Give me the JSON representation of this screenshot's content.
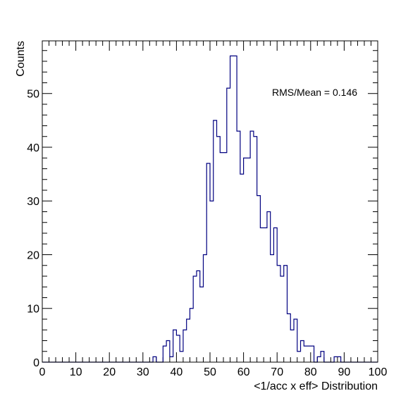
{
  "chart_data": {
    "type": "histogram",
    "title": "",
    "xlabel": "<1/acc x eff> Distribution",
    "ylabel": "Counts",
    "xlim": [
      0,
      100
    ],
    "ylim": [
      0,
      59.8
    ],
    "bin_width": 1,
    "x_major_ticks": [
      0,
      10,
      20,
      30,
      40,
      50,
      60,
      70,
      80,
      90,
      100
    ],
    "y_major_ticks": [
      0,
      10,
      20,
      30,
      40,
      50
    ],
    "tick_labels_x": [
      "0",
      "10",
      "20",
      "30",
      "40",
      "50",
      "60",
      "70",
      "80",
      "90",
      "100"
    ],
    "tick_labels_y": [
      "0",
      "10",
      "20",
      "30",
      "40",
      "50"
    ],
    "annotation": "RMS/Mean = 0.146",
    "line_color": "#000080",
    "bin_edges_start": 0,
    "counts": [
      0,
      0,
      0,
      0,
      0,
      0,
      0,
      0,
      0,
      0,
      0,
      0,
      0,
      0,
      0,
      0,
      0,
      0,
      0,
      0,
      0,
      0,
      0,
      0,
      0,
      0,
      0,
      0,
      0,
      0,
      0,
      0,
      0,
      1,
      0,
      0,
      3,
      4,
      1,
      6,
      5,
      2,
      6,
      8,
      10,
      16,
      17,
      14,
      20,
      37,
      30,
      45,
      42,
      39,
      39,
      51,
      57,
      57,
      43,
      35,
      38,
      38,
      43,
      42,
      31,
      25,
      25,
      28,
      20,
      25,
      18,
      16,
      18,
      9,
      6,
      8,
      2,
      4,
      3,
      3,
      3,
      0,
      1,
      2,
      0,
      0,
      0,
      1,
      1,
      0,
      0,
      0,
      0,
      0,
      0,
      0,
      0,
      0,
      0,
      0
    ]
  }
}
